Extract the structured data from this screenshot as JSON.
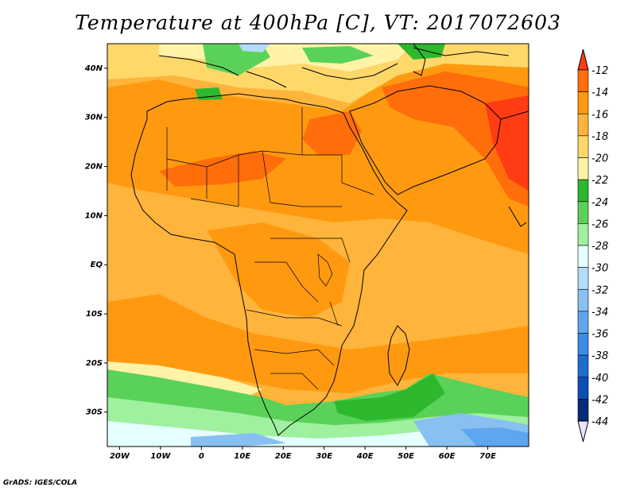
{
  "title": "Temperature at 400hPa [C], VT: 2017072603",
  "footer": "GrADS: IGES/COLA",
  "map": {
    "lon_range": [
      -23,
      80
    ],
    "lat_range": [
      -37,
      45
    ],
    "x_ticks": [
      {
        "lon": -20,
        "label": "20W"
      },
      {
        "lon": -10,
        "label": "10W"
      },
      {
        "lon": 0,
        "label": "0"
      },
      {
        "lon": 10,
        "label": "10E"
      },
      {
        "lon": 20,
        "label": "20E"
      },
      {
        "lon": 30,
        "label": "30E"
      },
      {
        "lon": 40,
        "label": "40E"
      },
      {
        "lon": 50,
        "label": "50E"
      },
      {
        "lon": 60,
        "label": "60E"
      },
      {
        "lon": 70,
        "label": "70E"
      }
    ],
    "y_ticks": [
      {
        "lat": 40,
        "label": "40N"
      },
      {
        "lat": 30,
        "label": "30N"
      },
      {
        "lat": 20,
        "label": "20N"
      },
      {
        "lat": 10,
        "label": "10N"
      },
      {
        "lat": 0,
        "label": "EQ"
      },
      {
        "lat": -10,
        "label": "10S"
      },
      {
        "lat": -20,
        "label": "20S"
      },
      {
        "lat": -30,
        "label": "30S"
      }
    ]
  },
  "colorbar": {
    "levels": [
      -12,
      -14,
      -16,
      -18,
      -20,
      -22,
      -24,
      -26,
      -28,
      -30,
      -32,
      -34,
      -36,
      -38,
      -40,
      -42,
      -44
    ],
    "colors": [
      "#ff3c14",
      "#ff6e0a",
      "#ff9a10",
      "#ffb43c",
      "#ffd86a",
      "#fff3a8",
      "#2eb82e",
      "#5ad25a",
      "#9ff09f",
      "#e6ffff",
      "#b2dcfa",
      "#88c0f2",
      "#5ea6ee",
      "#3c8ce6",
      "#1e6ed2",
      "#0a50b4",
      "#082a78"
    ],
    "top_triangle_color": "#ff3c14",
    "bottom_triangle_color": "#e6e6ff"
  }
}
